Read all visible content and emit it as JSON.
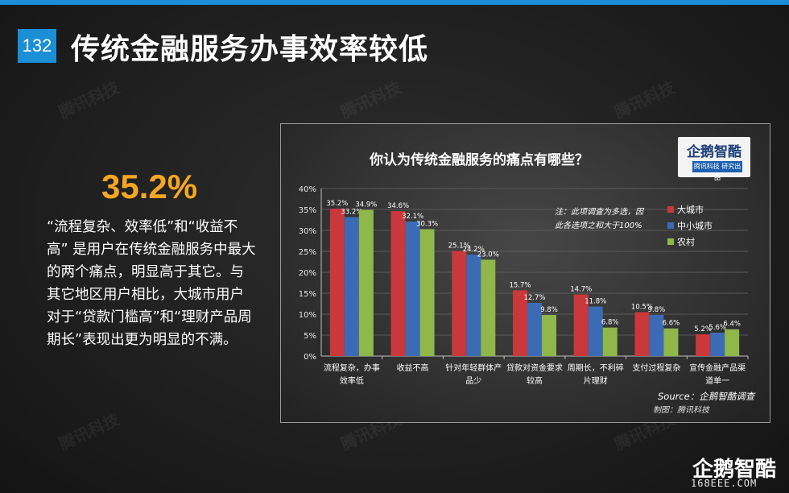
{
  "slide": {
    "number": "132",
    "title": "传统金融服务办事效率较低"
  },
  "highlight": {
    "percent": "35.2%",
    "text": "“流程复杂、效率低”和“收益不高” 是用户在传统金融服务中最大的两个痛点，明显高于其它。与其它地区用户相比，大城市用户对于“贷款门槛高”和“理财产品周期长”表现出更为明显的不满。"
  },
  "watermark": "腾讯科技",
  "brand": {
    "logo": "企鹅智酷",
    "logo_sub": "腾讯科技 研究出品",
    "footer_logo": "企鹅智酷",
    "footer_url": "168EEE.COM"
  },
  "colors": {
    "accent": "#1b8fd6",
    "highlight": "#f5a623",
    "series": [
      "#c9383a",
      "#3b6bb5",
      "#8fb74a"
    ]
  },
  "chart_data": {
    "type": "bar",
    "title": "你认为传统金融服务的痛点有哪些？",
    "note": [
      "注：此项调查为多选，因",
      "此各选项之和大于100%"
    ],
    "source": "Source：企鹅智酷调查",
    "maker": "制图：腾讯科技",
    "categories": [
      [
        "流程复杂，办事",
        "效率低"
      ],
      [
        "收益不高"
      ],
      [
        "针对年轻群体产",
        "品少"
      ],
      [
        "贷款对资金要求",
        "较高"
      ],
      [
        "周期长，不利碎",
        "片理财"
      ],
      [
        "支付过程复杂"
      ],
      [
        "宣传金融产品渠",
        "道单一"
      ]
    ],
    "series": [
      {
        "name": "大城市",
        "values": [
          35.2,
          34.6,
          25.1,
          15.7,
          14.7,
          10.5,
          5.2
        ]
      },
      {
        "name": "中小城市",
        "values": [
          33.2,
          32.1,
          24.2,
          12.7,
          11.8,
          9.8,
          5.6
        ]
      },
      {
        "name": "农村",
        "values": [
          34.9,
          30.3,
          23.0,
          9.8,
          6.8,
          6.6,
          6.4
        ]
      }
    ],
    "ylim": [
      0,
      40
    ],
    "yticks": [
      "0%",
      "5%",
      "10%",
      "15%",
      "20%",
      "25%",
      "30%",
      "35%",
      "40%"
    ],
    "legend_position": "top-right"
  }
}
